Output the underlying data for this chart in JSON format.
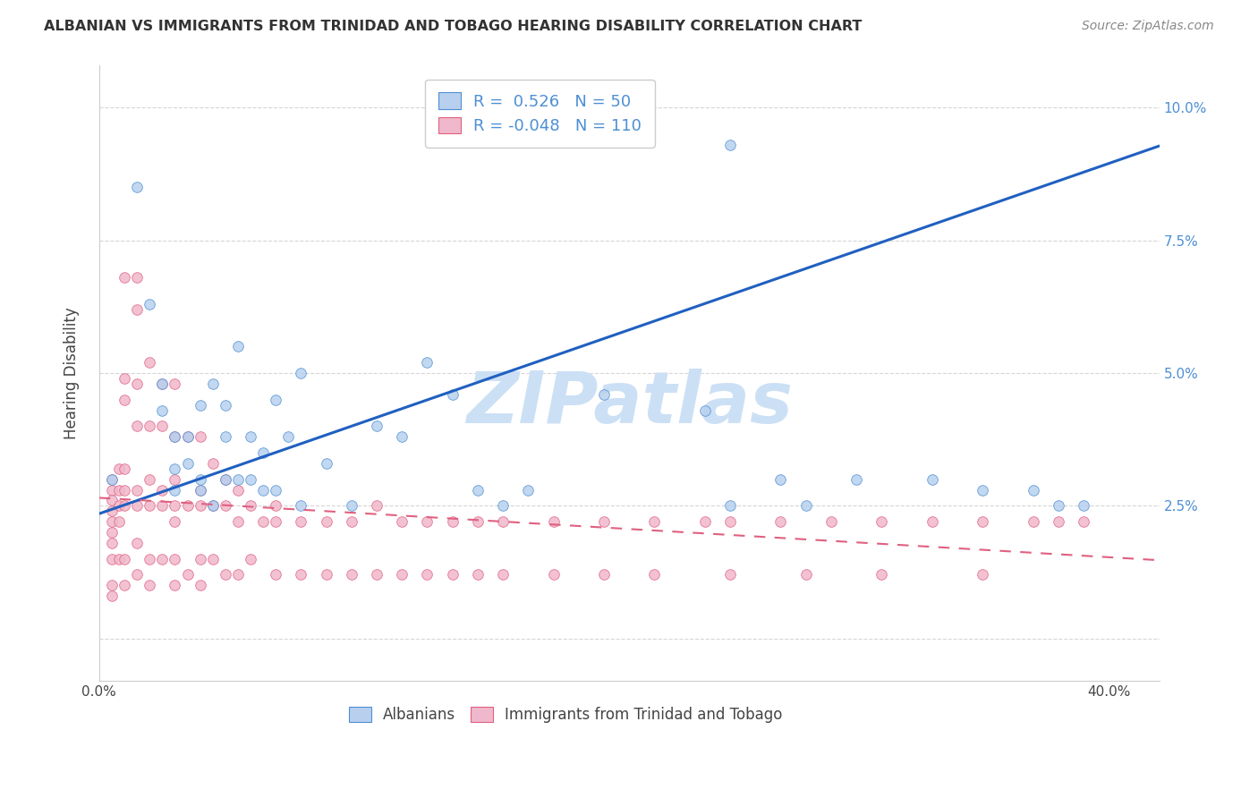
{
  "title": "ALBANIAN VS IMMIGRANTS FROM TRINIDAD AND TOBAGO HEARING DISABILITY CORRELATION CHART",
  "source": "Source: ZipAtlas.com",
  "ylabel": "Hearing Disability",
  "blue_color": "#4d8fd4",
  "pink_color": "#e06080",
  "blue_fill_color": "#b8d0ee",
  "pink_fill_color": "#f0b8cc",
  "blue_line_color": "#2060c0",
  "pink_line_color": "#e06080",
  "watermark": "ZIPatlas",
  "watermark_color": "#cce0f5",
  "background_color": "#ffffff",
  "xlim": [
    0.0,
    0.42
  ],
  "ylim": [
    -0.008,
    0.108
  ],
  "blue_r": 0.526,
  "blue_n": 50,
  "pink_r": -0.048,
  "pink_n": 110,
  "blue_slope": 0.165,
  "blue_intercept": 0.0235,
  "pink_slope": -0.028,
  "pink_intercept": 0.0265,
  "blue_points_x": [
    0.005,
    0.015,
    0.02,
    0.025,
    0.025,
    0.03,
    0.03,
    0.03,
    0.035,
    0.035,
    0.04,
    0.04,
    0.045,
    0.045,
    0.05,
    0.05,
    0.055,
    0.055,
    0.06,
    0.065,
    0.065,
    0.07,
    0.075,
    0.08,
    0.09,
    0.1,
    0.11,
    0.12,
    0.13,
    0.14,
    0.15,
    0.16,
    0.17,
    0.2,
    0.24,
    0.25,
    0.25,
    0.27,
    0.28,
    0.3,
    0.33,
    0.35,
    0.37,
    0.38,
    0.39,
    0.04,
    0.05,
    0.06,
    0.07,
    0.08
  ],
  "blue_points_y": [
    0.03,
    0.085,
    0.063,
    0.043,
    0.048,
    0.038,
    0.032,
    0.028,
    0.033,
    0.038,
    0.044,
    0.028,
    0.048,
    0.025,
    0.044,
    0.03,
    0.055,
    0.03,
    0.038,
    0.035,
    0.028,
    0.045,
    0.038,
    0.05,
    0.033,
    0.025,
    0.04,
    0.038,
    0.052,
    0.046,
    0.028,
    0.025,
    0.028,
    0.046,
    0.043,
    0.025,
    0.093,
    0.03,
    0.025,
    0.03,
    0.03,
    0.028,
    0.028,
    0.025,
    0.025,
    0.03,
    0.038,
    0.03,
    0.028,
    0.025
  ],
  "pink_points_x": [
    0.005,
    0.005,
    0.005,
    0.005,
    0.005,
    0.005,
    0.005,
    0.008,
    0.008,
    0.008,
    0.008,
    0.01,
    0.01,
    0.01,
    0.01,
    0.01,
    0.01,
    0.015,
    0.015,
    0.015,
    0.015,
    0.015,
    0.015,
    0.02,
    0.02,
    0.02,
    0.02,
    0.025,
    0.025,
    0.025,
    0.025,
    0.03,
    0.03,
    0.03,
    0.03,
    0.03,
    0.035,
    0.035,
    0.04,
    0.04,
    0.04,
    0.045,
    0.045,
    0.05,
    0.05,
    0.055,
    0.055,
    0.06,
    0.065,
    0.07,
    0.07,
    0.08,
    0.09,
    0.1,
    0.11,
    0.12,
    0.13,
    0.14,
    0.15,
    0.16,
    0.18,
    0.2,
    0.22,
    0.24,
    0.25,
    0.27,
    0.29,
    0.31,
    0.33,
    0.35,
    0.37,
    0.38,
    0.39,
    0.005,
    0.005,
    0.005,
    0.008,
    0.01,
    0.01,
    0.015,
    0.015,
    0.02,
    0.02,
    0.025,
    0.03,
    0.03,
    0.035,
    0.04,
    0.04,
    0.045,
    0.05,
    0.055,
    0.06,
    0.07,
    0.08,
    0.09,
    0.1,
    0.11,
    0.12,
    0.13,
    0.14,
    0.15,
    0.16,
    0.18,
    0.2,
    0.22,
    0.25,
    0.28,
    0.31,
    0.35
  ],
  "pink_points_y": [
    0.03,
    0.028,
    0.026,
    0.024,
    0.022,
    0.02,
    0.018,
    0.032,
    0.028,
    0.025,
    0.022,
    0.068,
    0.049,
    0.045,
    0.032,
    0.028,
    0.025,
    0.068,
    0.062,
    0.048,
    0.04,
    0.028,
    0.025,
    0.052,
    0.04,
    0.03,
    0.025,
    0.048,
    0.04,
    0.028,
    0.025,
    0.048,
    0.038,
    0.03,
    0.025,
    0.022,
    0.038,
    0.025,
    0.038,
    0.028,
    0.025,
    0.033,
    0.025,
    0.03,
    0.025,
    0.028,
    0.022,
    0.025,
    0.022,
    0.025,
    0.022,
    0.022,
    0.022,
    0.022,
    0.025,
    0.022,
    0.022,
    0.022,
    0.022,
    0.022,
    0.022,
    0.022,
    0.022,
    0.022,
    0.022,
    0.022,
    0.022,
    0.022,
    0.022,
    0.022,
    0.022,
    0.022,
    0.022,
    0.015,
    0.01,
    0.008,
    0.015,
    0.015,
    0.01,
    0.018,
    0.012,
    0.015,
    0.01,
    0.015,
    0.015,
    0.01,
    0.012,
    0.015,
    0.01,
    0.015,
    0.012,
    0.012,
    0.015,
    0.012,
    0.012,
    0.012,
    0.012,
    0.012,
    0.012,
    0.012,
    0.012,
    0.012,
    0.012,
    0.012,
    0.012,
    0.012,
    0.012,
    0.012,
    0.012,
    0.012
  ]
}
